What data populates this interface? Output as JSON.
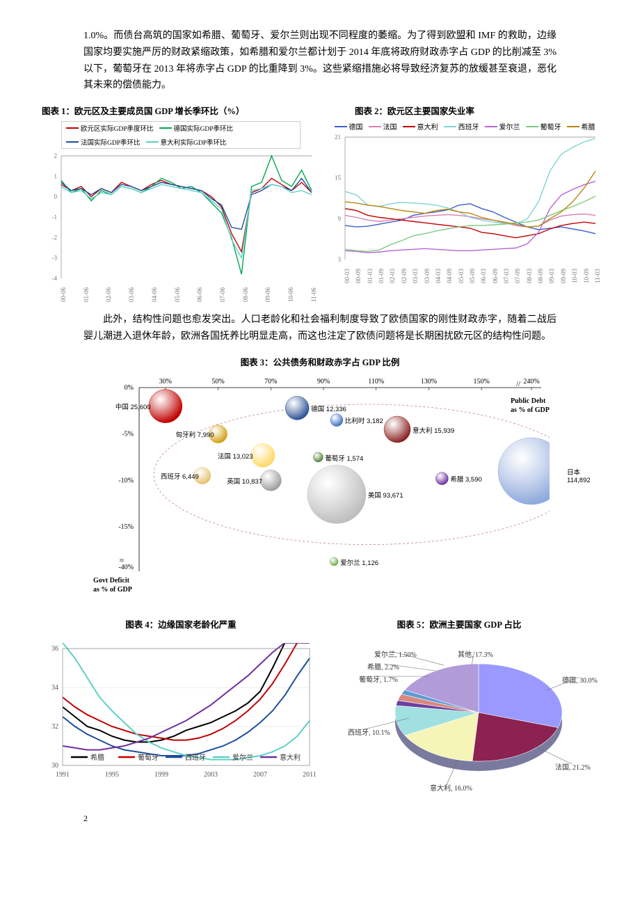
{
  "para1": "1.0%。而债台高筑的国家如希腊、葡萄牙、爱尔兰则出现不同程度的萎缩。为了得到欧盟和 IMF 的救助，边缘国家均要实施严厉的财政紧缩政策，如希腊和爱尔兰都计划于 2014 年底将政府财政赤字占 GDP 的比削减至 3%以下，葡萄牙在 2013 年将赤字占 GDP 的比重降到 3%。这些紧缩措施必将导致经济复苏的放缓甚至衰退，恶化其未来的偿债能力。",
  "chart1_title": "图表 1：欧元区及主要成员国 GDP 增长季环比（%）",
  "chart2_title": "图表 2：欧元区主要国家失业率",
  "chart1": {
    "legend": [
      {
        "label": "欧元区实际GDP季度环比",
        "color": "#c00000"
      },
      {
        "label": "德国实际GDP季环比",
        "color": "#00a651"
      },
      {
        "label": "法国实际GDP季环比",
        "color": "#1f4e9c"
      },
      {
        "label": "意大利实际GDP季环比",
        "color": "#5fd0c8"
      }
    ],
    "y_ticks": [
      2,
      1,
      0,
      -1,
      -2,
      -3,
      -4
    ],
    "x_labels": [
      "00-06",
      "01-06",
      "02-06",
      "03-06",
      "04-06",
      "05-06",
      "06-06",
      "07-06",
      "08-06",
      "09-06",
      "10-06",
      "11-06"
    ],
    "series": [
      {
        "color": "#c00000",
        "pts": [
          0.6,
          0.3,
          0.5,
          0.0,
          0.4,
          0.2,
          0.7,
          0.5,
          0.3,
          0.6,
          0.8,
          0.6,
          0.5,
          0.4,
          0.3,
          0.0,
          -0.5,
          -1.8,
          -2.7,
          0.2,
          0.4,
          0.9,
          0.6,
          0.3,
          0.7,
          0.2
        ]
      },
      {
        "color": "#00a651",
        "pts": [
          0.8,
          0.2,
          0.4,
          -0.2,
          0.3,
          0.1,
          0.5,
          0.4,
          0.2,
          0.5,
          0.9,
          0.7,
          0.4,
          0.5,
          0.2,
          -0.3,
          -0.8,
          -2.0,
          -3.8,
          0.5,
          0.7,
          2.0,
          0.8,
          0.5,
          1.3,
          0.3
        ]
      },
      {
        "color": "#1f4e9c",
        "pts": [
          0.7,
          0.3,
          0.4,
          0.1,
          0.4,
          0.2,
          0.6,
          0.5,
          0.3,
          0.5,
          0.7,
          0.6,
          0.5,
          0.4,
          0.3,
          -0.1,
          -0.4,
          -1.5,
          -1.6,
          0.1,
          0.3,
          0.6,
          0.5,
          0.3,
          0.9,
          0.2
        ]
      },
      {
        "color": "#5fd0c8",
        "pts": [
          0.5,
          0.2,
          0.3,
          -0.1,
          0.2,
          0.1,
          0.5,
          0.4,
          0.2,
          0.4,
          0.6,
          0.5,
          0.4,
          0.3,
          0.2,
          -0.2,
          -0.6,
          -2.1,
          -3.0,
          0.3,
          0.4,
          0.6,
          0.5,
          0.2,
          0.3,
          0.1
        ]
      }
    ]
  },
  "chart2": {
    "legend": [
      {
        "label": "德国",
        "color": "#3a5fcd"
      },
      {
        "label": "法国",
        "color": "#d77fb4"
      },
      {
        "label": "意大利",
        "color": "#c00000"
      },
      {
        "label": "西班牙",
        "color": "#7fd4d4"
      },
      {
        "label": "爱尔兰",
        "color": "#b565d8"
      },
      {
        "label": "葡萄牙",
        "color": "#7fc97f"
      },
      {
        "label": "希腊",
        "color": "#b8860b"
      }
    ],
    "y_ticks": [
      21,
      15,
      9,
      3
    ],
    "x_labels": [
      "00-03",
      "00-09",
      "01-03",
      "01-09",
      "02-03",
      "02-09",
      "03-03",
      "03-09",
      "04-03",
      "04-09",
      "05-03",
      "05-09",
      "06-03",
      "06-09",
      "07-03",
      "07-09",
      "08-03",
      "08-09",
      "09-03",
      "09-09",
      "10-03",
      "10-09",
      "11-03"
    ],
    "series": [
      {
        "color": "#3a5fcd",
        "pts": [
          8.0,
          7.8,
          7.9,
          8.2,
          8.5,
          8.8,
          9.5,
          9.8,
          10.0,
          10.3,
          11.0,
          11.2,
          10.5,
          10.0,
          9.2,
          8.5,
          7.8,
          7.4,
          7.6,
          7.8,
          7.5,
          7.2,
          6.8
        ]
      },
      {
        "color": "#d77fb4",
        "pts": [
          9.5,
          9.2,
          8.8,
          8.6,
          8.8,
          9.0,
          9.2,
          9.4,
          9.5,
          9.6,
          9.5,
          9.3,
          9.0,
          8.8,
          8.4,
          8.0,
          7.8,
          7.9,
          8.8,
          9.4,
          9.6,
          9.7,
          9.5
        ]
      },
      {
        "color": "#c00000",
        "pts": [
          10.5,
          10.2,
          9.5,
          9.2,
          9.0,
          8.8,
          8.6,
          8.4,
          8.2,
          8.0,
          7.8,
          7.6,
          7.0,
          6.8,
          6.5,
          6.2,
          6.5,
          6.8,
          7.5,
          8.0,
          8.3,
          8.5,
          8.3
        ]
      },
      {
        "color": "#7fd4d4",
        "pts": [
          13.0,
          12.5,
          11.0,
          10.8,
          11.2,
          11.4,
          11.3,
          11.2,
          11.0,
          10.6,
          10.0,
          9.2,
          8.8,
          8.5,
          8.3,
          8.2,
          9.0,
          11.5,
          16.0,
          18.5,
          19.5,
          20.3,
          20.8
        ]
      },
      {
        "color": "#b565d8",
        "pts": [
          4.3,
          4.2,
          4.0,
          4.1,
          4.3,
          4.4,
          4.5,
          4.6,
          4.5,
          4.4,
          4.3,
          4.3,
          4.4,
          4.5,
          4.6,
          4.7,
          5.3,
          7.0,
          10.5,
          12.5,
          13.3,
          14.0,
          14.5
        ]
      },
      {
        "color": "#7fc97f",
        "pts": [
          4.5,
          4.3,
          4.2,
          4.4,
          5.2,
          5.8,
          6.5,
          6.8,
          7.2,
          7.5,
          7.8,
          8.0,
          8.0,
          8.1,
          8.2,
          8.4,
          8.5,
          8.8,
          9.5,
          10.2,
          10.8,
          11.5,
          12.3
        ]
      },
      {
        "color": "#b8860b",
        "pts": [
          11.5,
          11.3,
          11.0,
          10.8,
          10.5,
          10.2,
          10.0,
          9.8,
          10.2,
          10.4,
          10.0,
          9.8,
          9.2,
          8.8,
          8.5,
          8.2,
          7.8,
          7.9,
          9.0,
          10.0,
          11.5,
          13.5,
          16.0
        ]
      }
    ]
  },
  "para2": "此外，结构性问题也愈发突出。人口老龄化和社会福利制度导致了欧债国家的刚性财政赤字，随着二战后婴儿潮进入退休年龄，欧洲各国抚养比明显走高，而这也注定了欧债问题将是长期困扰欧元区的结构性问题。",
  "chart3_title": "图表 3：公共债务和财政赤字占 GDP 比例",
  "chart3": {
    "x_ticks": [
      "30%",
      "50%",
      "70%",
      "90%",
      "110%",
      "130%",
      "150%",
      "240%"
    ],
    "y_ticks": [
      "0%",
      "-5%",
      "-10%",
      "-15%",
      "-40%"
    ],
    "x_axis_label": "Public Debt as % of GDP",
    "y_axis_label": "Govt Deficit as % of GDP",
    "bubbles": [
      {
        "label": "中国",
        "value": "25,600",
        "x": 30,
        "y": -2.0,
        "r": 24,
        "color": "#c00000"
      },
      {
        "label": "匈牙利",
        "value": "7,990",
        "x": 50,
        "y": -5.0,
        "r": 13,
        "color": "#d4a017"
      },
      {
        "label": "德国",
        "value": "12,336",
        "x": 80,
        "y": -2.2,
        "r": 17,
        "color": "#305496"
      },
      {
        "label": "比利时",
        "value": "3,182",
        "x": 95,
        "y": -3.5,
        "r": 9,
        "color": "#4472c4"
      },
      {
        "label": "意大利",
        "value": "15,939",
        "x": 118,
        "y": -4.5,
        "r": 19,
        "color": "#8b2323"
      },
      {
        "label": "西班牙",
        "value": "6,449",
        "x": 44,
        "y": -9.5,
        "r": 12,
        "color": "#e8c26e"
      },
      {
        "label": "法国",
        "value": "13,023",
        "x": 67,
        "y": -7.3,
        "r": 17,
        "color": "#ffd966"
      },
      {
        "label": "葡萄牙",
        "value": "1,574",
        "x": 88,
        "y": -7.5,
        "r": 7,
        "color": "#548235"
      },
      {
        "label": "英国",
        "value": "10,837",
        "x": 70,
        "y": -10.0,
        "r": 15,
        "color": "#9e9e9e"
      },
      {
        "label": "美国",
        "value": "93,671",
        "x": 95,
        "y": -11.5,
        "r": 42,
        "color": "#bfbfbf"
      },
      {
        "label": "希腊",
        "value": "3,590",
        "x": 135,
        "y": -9.8,
        "r": 9,
        "color": "#7030a0"
      },
      {
        "label": "日本",
        "value": "114,892",
        "x": 215,
        "y": -9.0,
        "r": 48,
        "color": "#8faadc"
      },
      {
        "label": "爱尔兰",
        "value": "1,126",
        "x": 94,
        "y": -28,
        "r": 6,
        "color": "#70ad47"
      }
    ]
  },
  "chart4_title": "图表 4：边缘国家老龄化严重",
  "chart5_title": "图表 5：欧洲主要国家 GDP 占比",
  "chart4": {
    "legend": [
      {
        "label": "希腊",
        "color": "#000000"
      },
      {
        "label": "葡萄牙",
        "color": "#c00000"
      },
      {
        "label": "西班牙",
        "color": "#1f4e9c"
      },
      {
        "label": "爱尔兰",
        "color": "#5fd0c8"
      },
      {
        "label": "意大利",
        "color": "#7030a0"
      }
    ],
    "y_ticks": [
      36,
      34,
      32,
      30
    ],
    "x_labels": [
      "1991",
      "1995",
      "1999",
      "2003",
      "2007",
      "2011"
    ],
    "series": [
      {
        "color": "#000000",
        "pts": [
          33.0,
          32.5,
          32.0,
          31.8,
          31.5,
          31.3,
          31.2,
          31.2,
          31.3,
          31.5,
          31.8,
          32.0,
          32.2,
          32.5,
          32.8,
          33.2,
          33.8,
          35.0,
          38.0,
          45.0,
          52.0
        ]
      },
      {
        "color": "#c00000",
        "pts": [
          33.5,
          33.0,
          32.6,
          32.3,
          32.0,
          31.8,
          31.6,
          31.5,
          31.4,
          31.3,
          31.3,
          31.4,
          31.6,
          31.9,
          32.3,
          32.8,
          33.4,
          34.2,
          35.2,
          36.5,
          38.0
        ]
      },
      {
        "color": "#1f4e9c",
        "pts": [
          32.5,
          32.0,
          31.6,
          31.3,
          31.0,
          30.8,
          30.7,
          30.6,
          30.5,
          30.5,
          30.5,
          30.6,
          30.8,
          31.0,
          31.3,
          31.7,
          32.2,
          32.8,
          33.6,
          34.6,
          35.5
        ]
      },
      {
        "color": "#5fd0c8",
        "pts": [
          36.5,
          35.5,
          34.5,
          33.5,
          32.8,
          32.2,
          31.6,
          31.2,
          30.9,
          30.7,
          30.5,
          30.4,
          30.3,
          30.3,
          30.3,
          30.4,
          30.5,
          30.7,
          31.0,
          31.5,
          32.3
        ]
      },
      {
        "color": "#7030a0",
        "pts": [
          31.0,
          30.9,
          30.8,
          30.8,
          30.9,
          31.0,
          31.2,
          31.4,
          31.7,
          32.0,
          32.3,
          32.7,
          33.1,
          33.6,
          34.1,
          34.6,
          35.2,
          35.8,
          36.5,
          37.3,
          38.2
        ]
      }
    ]
  },
  "chart5": {
    "slices": [
      {
        "label": "德国",
        "value": "30.0%",
        "pct": 30.0,
        "color": "#9999ff"
      },
      {
        "label": "法国",
        "value": "21.2%",
        "pct": 21.2,
        "color": "#8b2252"
      },
      {
        "label": "意大利",
        "value": "16.0%",
        "pct": 16.0,
        "color": "#f5f5b8"
      },
      {
        "label": "西班牙",
        "value": "10.1%",
        "pct": 10.1,
        "color": "#a0e0e0"
      },
      {
        "label": "葡萄牙",
        "value": "1.7%",
        "pct": 1.7,
        "color": "#6b3fa0"
      },
      {
        "label": "希腊",
        "value": "2.2%",
        "pct": 2.2,
        "color": "#d98880"
      },
      {
        "label": "爱尔兰",
        "value": "1.50%",
        "pct": 1.5,
        "color": "#5a9bd4"
      },
      {
        "label": "其他",
        "value": "17.3%",
        "pct": 17.3,
        "color": "#b19cd9"
      }
    ]
  },
  "page_number": "2"
}
